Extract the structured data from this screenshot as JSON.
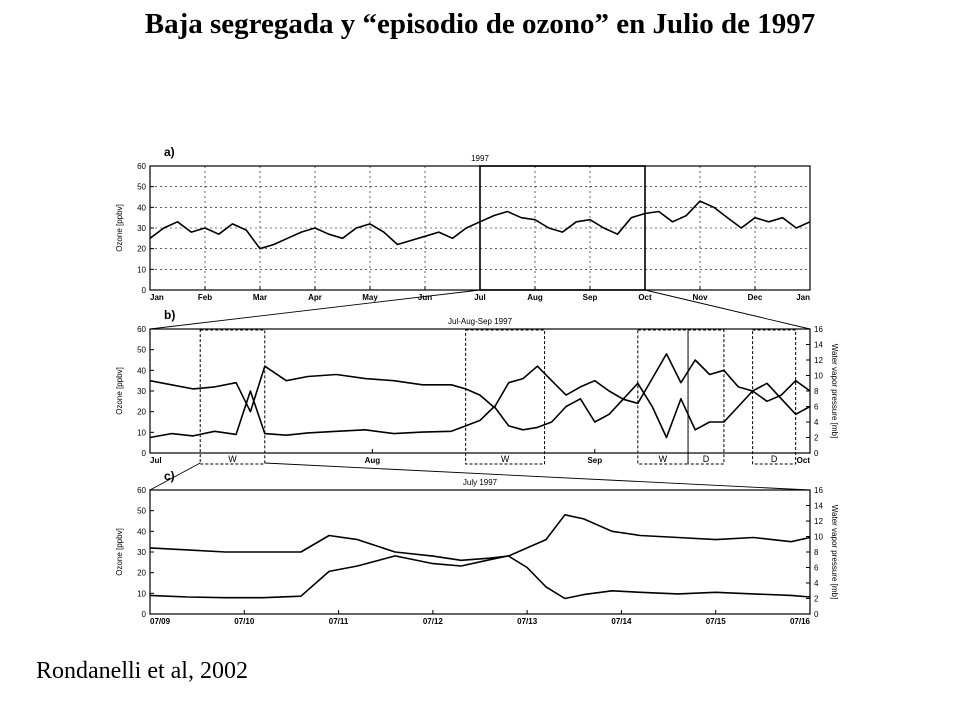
{
  "slide": {
    "title": "Baja segregada y “episodio de ozono”  en Julio de 1997",
    "citation": "Rondanelli et al, 2002"
  },
  "chart_data": [
    {
      "panel": "a)",
      "type": "line",
      "title": "1997",
      "ylabel": "Ozone [ppbv]",
      "ylim": [
        0,
        60
      ],
      "yticks": [
        0,
        10,
        20,
        30,
        40,
        50,
        60
      ],
      "xlim": [
        0,
        12
      ],
      "xtick_labels": [
        "Jan",
        "Feb",
        "Mar",
        "Apr",
        "May",
        "Jun",
        "Jul",
        "Aug",
        "Sep",
        "Oct",
        "Nov",
        "Dec",
        "Jan"
      ],
      "grid": true,
      "highlight_box": {
        "x": [
          6,
          9
        ]
      },
      "series": [
        {
          "x": [
            0,
            0.25,
            0.5,
            0.75,
            1,
            1.25,
            1.5,
            1.75,
            2,
            2.25,
            2.5,
            2.75,
            3,
            3.25,
            3.5,
            3.75,
            4,
            4.25,
            4.5,
            4.75,
            5,
            5.25,
            5.5,
            5.75,
            6,
            6.25,
            6.5,
            6.75,
            7,
            7.25,
            7.5,
            7.75,
            8,
            8.25,
            8.5,
            8.75,
            9,
            9.25,
            9.5,
            9.75,
            10,
            10.25,
            10.5,
            10.75,
            11,
            11.25,
            11.5,
            11.75,
            12
          ],
          "values": [
            25,
            30,
            33,
            28,
            30,
            27,
            32,
            29,
            20,
            22,
            25,
            28,
            30,
            27,
            25,
            30,
            32,
            28,
            22,
            24,
            26,
            28,
            25,
            30,
            33,
            36,
            38,
            35,
            34,
            30,
            28,
            33,
            34,
            30,
            27,
            35,
            37,
            38,
            33,
            36,
            43,
            40,
            35,
            30,
            35,
            33,
            35,
            30,
            33
          ]
        }
      ]
    },
    {
      "panel": "b)",
      "type": "line",
      "title": "Jul-Aug-Sep 1997",
      "ylabel": "Ozone [ppbv]",
      "ylabel_right": "Water vapor pressure [mb]",
      "ylim": [
        0,
        60
      ],
      "ylim_right": [
        0,
        16
      ],
      "yticks": [
        0,
        10,
        20,
        30,
        40,
        50,
        60
      ],
      "yticks_right": [
        0,
        2,
        4,
        6,
        8,
        10,
        12,
        14,
        16
      ],
      "xlim": [
        0,
        92
      ],
      "xtick_labels": [
        "Jul",
        "Aug",
        "Sep",
        "Oct"
      ],
      "xtick_positions": [
        0,
        31,
        62,
        92
      ],
      "grid": false,
      "boxes": [
        {
          "x": [
            7,
            16
          ],
          "label": "W"
        },
        {
          "x": [
            44,
            55
          ],
          "label": "W"
        },
        {
          "x": [
            68,
            75
          ],
          "label": "W"
        },
        {
          "x": [
            75,
            80
          ],
          "label": "D"
        },
        {
          "x": [
            84,
            90
          ],
          "label": "D"
        }
      ],
      "series": [
        {
          "x": [
            0,
            3,
            6,
            9,
            12,
            14,
            16,
            19,
            22,
            26,
            30,
            34,
            38,
            42,
            44,
            46,
            48,
            50,
            52,
            54,
            56,
            58,
            60,
            62,
            64,
            66,
            68,
            70,
            72,
            74,
            76,
            78,
            80,
            82,
            84,
            86,
            88,
            90,
            92
          ],
          "values": [
            35,
            33,
            31,
            32,
            34,
            20,
            42,
            35,
            37,
            38,
            36,
            35,
            33,
            33,
            31,
            28,
            22,
            34,
            36,
            42,
            35,
            28,
            32,
            35,
            30,
            26,
            24,
            36,
            48,
            34,
            45,
            38,
            40,
            32,
            30,
            25,
            28,
            35,
            30
          ]
        },
        {
          "x": [
            0,
            3,
            6,
            9,
            12,
            14,
            16,
            19,
            22,
            26,
            30,
            34,
            38,
            42,
            44,
            46,
            48,
            50,
            52,
            54,
            56,
            58,
            60,
            62,
            64,
            66,
            68,
            70,
            72,
            74,
            76,
            78,
            80,
            82,
            84,
            86,
            88,
            90,
            92
          ],
          "values": [
            2,
            2.5,
            2.2,
            2.8,
            2.4,
            8,
            2.5,
            2.3,
            2.6,
            2.8,
            3,
            2.5,
            2.7,
            2.8,
            3.5,
            4.2,
            6,
            3.5,
            3,
            3.3,
            4,
            6,
            7,
            4,
            5,
            7,
            9,
            6,
            2,
            7,
            3,
            4,
            4,
            6,
            8,
            9,
            7,
            5,
            6
          ]
        }
      ]
    },
    {
      "panel": "c)",
      "type": "line",
      "title": "July 1997",
      "ylabel": "Ozone [ppbv]",
      "ylabel_right": "Water vapor pressure [mb]",
      "ylim": [
        0,
        60
      ],
      "ylim_right": [
        0,
        16
      ],
      "yticks": [
        0,
        10,
        20,
        30,
        40,
        50,
        60
      ],
      "yticks_right": [
        0,
        2,
        4,
        6,
        8,
        10,
        12,
        14,
        16
      ],
      "xlim": [
        9,
        16
      ],
      "xtick_labels": [
        "07/09",
        "07/10",
        "07/11",
        "07/12",
        "07/13",
        "07/14",
        "07/15",
        "07/16"
      ],
      "xtick_positions": [
        9,
        10,
        11,
        12,
        13,
        14,
        15,
        16
      ],
      "grid": false,
      "series": [
        {
          "x": [
            9,
            9.4,
            9.8,
            10.2,
            10.6,
            10.9,
            11.2,
            11.6,
            12,
            12.3,
            12.6,
            12.8,
            13,
            13.2,
            13.4,
            13.6,
            13.9,
            14.2,
            14.6,
            15,
            15.4,
            15.8,
            16
          ],
          "values": [
            32,
            31,
            30,
            30,
            30,
            38,
            36,
            30,
            28,
            26,
            27,
            28,
            32,
            36,
            48,
            46,
            40,
            38,
            37,
            36,
            37,
            35,
            37
          ]
        },
        {
          "x": [
            9,
            9.4,
            9.8,
            10.2,
            10.6,
            10.9,
            11.2,
            11.6,
            12,
            12.3,
            12.6,
            12.8,
            13,
            13.2,
            13.4,
            13.6,
            13.9,
            14.2,
            14.6,
            15,
            15.4,
            15.8,
            16
          ],
          "values": [
            2.4,
            2.2,
            2.1,
            2.1,
            2.3,
            5.5,
            6.2,
            7.5,
            6.5,
            6.2,
            7,
            7.5,
            6,
            3.5,
            2,
            2.5,
            3,
            2.8,
            2.6,
            2.8,
            2.6,
            2.4,
            2.2
          ]
        }
      ]
    }
  ]
}
